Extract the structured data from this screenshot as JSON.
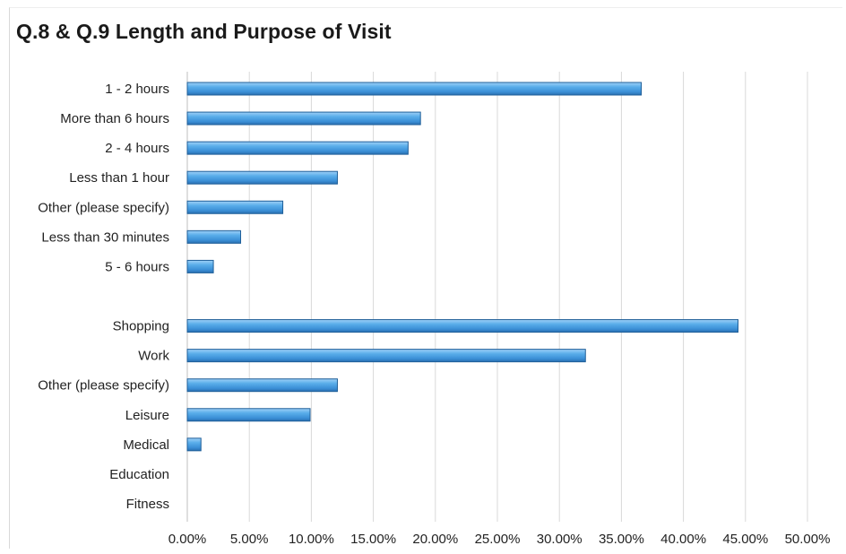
{
  "chart_data": {
    "type": "bar",
    "orientation": "horizontal",
    "title": "Q.8 & Q.9 Length and Purpose of Visit",
    "xlabel": "",
    "ylabel": "",
    "xlim": [
      0,
      50
    ],
    "x_ticks": [
      "0.00%",
      "5.00%",
      "10.00%",
      "15.00%",
      "20.00%",
      "25.00%",
      "30.00%",
      "35.00%",
      "40.00%",
      "45.00%",
      "50.00%"
    ],
    "grid": true,
    "legend": "none",
    "bar_color": "#4a9fe0",
    "bar_edge_color": "#1f5f99",
    "categories": [
      "1 - 2 hours",
      "More than 6 hours",
      "2 - 4 hours",
      "Less than 1 hour",
      "Other (please specify)",
      "Less than 30 minutes",
      "5 - 6 hours",
      "",
      "Shopping",
      "Work",
      "Other (please specify)",
      "Leisure",
      "Medical",
      "Education",
      "Fitness"
    ],
    "values": [
      36.6,
      18.8,
      17.8,
      12.1,
      7.7,
      4.3,
      2.1,
      null,
      44.4,
      32.1,
      12.1,
      9.9,
      1.1,
      0,
      0
    ]
  }
}
